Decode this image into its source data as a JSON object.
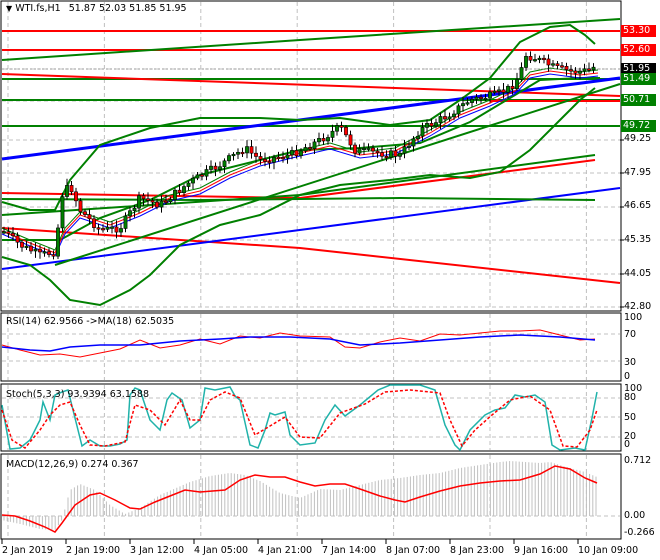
{
  "header": {
    "symbol_label": "WTI.fs,H1",
    "ohlc": "51.87 52.03 51.85 51.95",
    "collapse_icon": "triangle-down-icon"
  },
  "colors": {
    "bull_candle": "#008000",
    "bear_candle": "#ff0000",
    "support_green": "#008000",
    "resistance_red": "#ff0000",
    "trend_blue": "#0000ff",
    "rsi_line": "#ff0000",
    "rsi_ma": "#0000ff",
    "stoch_main": "#20b2aa",
    "stoch_signal": "#ff0000",
    "macd_hist": "#c0c0c0",
    "macd_signal": "#ff0000",
    "current_price_bg": "#000000",
    "grid": "#c0c0c0"
  },
  "price_axis": {
    "labels": [
      "52.60",
      "51.95",
      "51.49",
      "50.71",
      "49.72",
      "49.25",
      "47.95",
      "46.65",
      "45.35",
      "44.05",
      "42.80"
    ],
    "tags": [
      {
        "value": "53.30",
        "type": "resistance",
        "color": "#ff0000"
      },
      {
        "value": "52.60",
        "type": "resistance",
        "color": "#ff0000"
      },
      {
        "value": "51.95",
        "type": "current",
        "color": "#000000"
      },
      {
        "value": "51.49",
        "type": "support",
        "color": "#008000"
      },
      {
        "value": "50.71",
        "type": "support",
        "color": "#008000"
      },
      {
        "value": "49.72",
        "type": "support",
        "color": "#008000"
      }
    ],
    "ticks": [
      "49.25",
      "47.95",
      "46.65",
      "45.35",
      "44.05",
      "42.80"
    ]
  },
  "rsi": {
    "label": "RSI(14) 62.9566 ->MA(18) 62.5035",
    "axis": [
      "100",
      "70",
      "30",
      "0"
    ]
  },
  "stoch": {
    "label": "Stoch(5,3,3) 93.9394 63.1588",
    "axis": [
      "100",
      "80",
      "50",
      "20",
      "0"
    ]
  },
  "macd": {
    "label": "MACD(12,26,9) 0.274 0.367",
    "axis": [
      "0.712",
      "0.00",
      "-0.266"
    ]
  },
  "time_axis": {
    "labels": [
      "2 Jan 2019",
      "2 Jan 19:00",
      "3 Jan 12:00",
      "4 Jan 05:00",
      "4 Jan 21:00",
      "7 Jan 14:00",
      "8 Jan 07:00",
      "8 Jan 23:00",
      "9 Jan 16:00",
      "10 Jan 09:00"
    ]
  },
  "chart_data": [
    {
      "type": "line",
      "title": "WTI.fs,H1 51.87 52.03 51.85 51.95",
      "subtype": "candlestick",
      "xlabel": "",
      "ylabel": "Price",
      "ylim": [
        42.8,
        53.6
      ],
      "categories": [
        "2 Jan 2019",
        "2 Jan 19:00",
        "3 Jan 12:00",
        "4 Jan 05:00",
        "4 Jan 21:00",
        "7 Jan 14:00",
        "8 Jan 07:00",
        "8 Jan 23:00",
        "9 Jan 16:00",
        "10 Jan 09:00"
      ],
      "series": [
        {
          "name": "Close (approx.)",
          "values": [
            45.5,
            46.0,
            46.5,
            47.6,
            48.5,
            49.4,
            49.2,
            50.5,
            52.2,
            51.95
          ]
        }
      ],
      "levels": {
        "resistance": [
          53.3,
          52.6
        ],
        "support": [
          51.49,
          50.71,
          49.72
        ],
        "current": 51.95
      },
      "grid": true
    },
    {
      "type": "line",
      "title": "RSI(14) 62.9566 ->MA(18) 62.5035",
      "ylim": [
        0,
        100
      ],
      "levels": [
        70,
        30
      ],
      "categories": [
        "2 Jan 2019",
        "2 Jan 19:00",
        "3 Jan 12:00",
        "4 Jan 05:00",
        "4 Jan 21:00",
        "7 Jan 14:00",
        "8 Jan 07:00",
        "8 Jan 23:00",
        "9 Jan 16:00",
        "10 Jan 09:00"
      ],
      "series": [
        {
          "name": "RSI(14)",
          "values": [
            55,
            72,
            58,
            60,
            66,
            70,
            55,
            64,
            72,
            62.96
          ]
        },
        {
          "name": "MA(18)",
          "values": [
            52,
            58,
            60,
            62,
            64,
            66,
            60,
            63,
            68,
            62.5
          ]
        }
      ]
    },
    {
      "type": "line",
      "title": "Stoch(5,3,3) 93.9394 63.1588",
      "ylim": [
        0,
        100
      ],
      "levels": [
        80,
        20
      ],
      "categories": [
        "2 Jan 2019",
        "2 Jan 19:00",
        "3 Jan 12:00",
        "4 Jan 05:00",
        "4 Jan 21:00",
        "7 Jan 14:00",
        "8 Jan 07:00",
        "8 Jan 23:00",
        "9 Jan 16:00",
        "10 Jan 09:00"
      ],
      "series": [
        {
          "name": "%K",
          "values": [
            80,
            5,
            100,
            15,
            95,
            35,
            100,
            100,
            10,
            93.94
          ]
        },
        {
          "name": "%D",
          "values": [
            75,
            10,
            90,
            20,
            90,
            45,
            95,
            95,
            15,
            63.16
          ]
        }
      ]
    },
    {
      "type": "bar",
      "title": "MACD(12,26,9) 0.274 0.367",
      "ylim": [
        -0.266,
        0.712
      ],
      "categories": [
        "2 Jan 2019",
        "2 Jan 19:00",
        "3 Jan 12:00",
        "4 Jan 05:00",
        "4 Jan 21:00",
        "7 Jan 14:00",
        "8 Jan 07:00",
        "8 Jan 23:00",
        "9 Jan 16:00",
        "10 Jan 09:00"
      ],
      "series": [
        {
          "name": "MACD histogram",
          "values": [
            -0.05,
            -0.2,
            0.4,
            0.15,
            0.3,
            0.4,
            0.05,
            0.35,
            0.7,
            0.274
          ]
        },
        {
          "name": "Signal",
          "values": [
            0.0,
            -0.22,
            0.28,
            0.1,
            0.25,
            0.4,
            0.05,
            0.3,
            0.58,
            0.367
          ]
        }
      ]
    }
  ]
}
